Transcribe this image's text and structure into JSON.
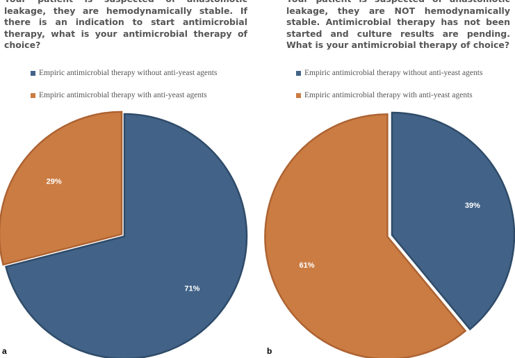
{
  "colors": {
    "without_fill": "#426387",
    "without_edge": "#2f4b69",
    "with_fill": "#cb7c43",
    "with_edge": "#ad6332",
    "label": "#ffffff"
  },
  "chart_data": [
    {
      "type": "pie",
      "panel_label": "a",
      "title": "Your patient is suspected of anastomotic leakage, they are hemodynamically stable. If there is an indication to start antimicrobial therapy, what is your antimicrobial therapy of choice?",
      "legend": [
        "Empiric antimicrobial therapy without anti-yeast agents",
        "Empiric antimicrobial therapy with anti-yeast agents"
      ],
      "slices": [
        {
          "name": "Empiric antimicrobial therapy without anti-yeast agents",
          "value": 71,
          "label": "71%",
          "exploded": false
        },
        {
          "name": "Empiric antimicrobial therapy with anti-yeast agents",
          "value": 29,
          "label": "29%",
          "exploded": true
        }
      ]
    },
    {
      "type": "pie",
      "panel_label": "b",
      "title": "Your patient is suspected of anastomotic leakage, they are NOT hemodynamically stable. Antimicrobial therapy has not been started and culture results are pending. What is your antimicrobial therapy of choice?",
      "legend": [
        "Empiric antimicrobial therapy without anti-yeast agents",
        "Empiric antimicrobial therapy with anti-yeast agents"
      ],
      "slices": [
        {
          "name": "Empiric antimicrobial therapy without anti-yeast agents",
          "value": 39,
          "label": "39%",
          "exploded": false
        },
        {
          "name": "Empiric antimicrobial therapy with anti-yeast agents",
          "value": 61,
          "label": "61%",
          "exploded": true
        }
      ]
    }
  ]
}
